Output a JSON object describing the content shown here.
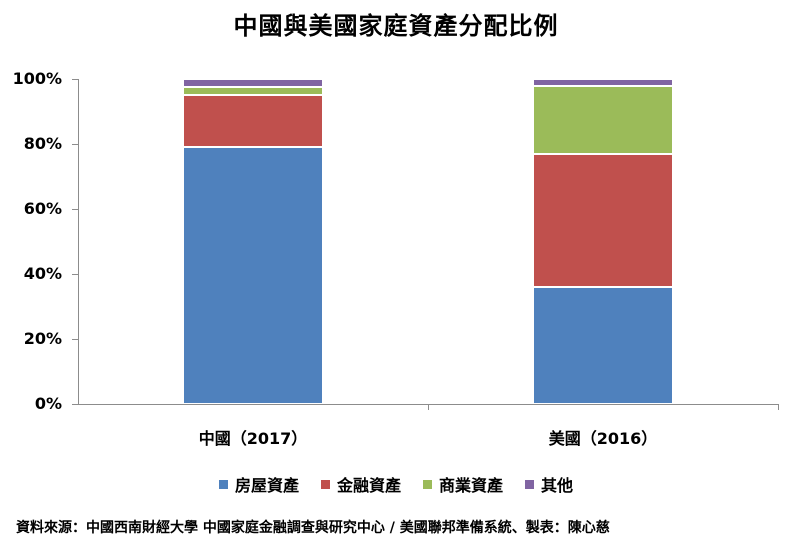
{
  "title": "中國與美國家庭資產分配比例",
  "chart_data": {
    "type": "bar",
    "stacked": true,
    "title": "中國與美國家庭資產分配比例",
    "categories": [
      "中國（2017）",
      "美國（2016）"
    ],
    "series": [
      {
        "name": "房屋資產",
        "color": "#4f81bd",
        "values": [
          79,
          36
        ]
      },
      {
        "name": "金融資產",
        "color": "#c0504d",
        "values": [
          16,
          41
        ]
      },
      {
        "name": "商業資產",
        "color": "#9bbb59",
        "values": [
          2.5,
          21
        ]
      },
      {
        "name": "其他",
        "color": "#8064a2",
        "values": [
          2.5,
          2
        ]
      }
    ],
    "xlabel": "",
    "ylabel": "",
    "ylim": [
      0,
      100
    ],
    "yticks": [
      "0%",
      "20%",
      "40%",
      "60%",
      "80%",
      "100%"
    ],
    "grid": false,
    "legend_position": "bottom"
  },
  "yaxis": {
    "ticks": [
      {
        "label": "100%",
        "value": 100
      },
      {
        "label": "80%",
        "value": 80
      },
      {
        "label": "60%",
        "value": 60
      },
      {
        "label": "40%",
        "value": 40
      },
      {
        "label": "20%",
        "value": 20
      },
      {
        "label": "0%",
        "value": 0
      }
    ]
  },
  "xaxis": {
    "labels": [
      "中國（2017）",
      "美國（2016）"
    ]
  },
  "legend": [
    {
      "label": "房屋資產",
      "color": "#4f81bd"
    },
    {
      "label": "金融資產",
      "color": "#c0504d"
    },
    {
      "label": "商業資產",
      "color": "#9bbb59"
    },
    {
      "label": "其他",
      "color": "#8064a2"
    }
  ],
  "source": "資料來源：中國西南財經大學 中國家庭金融調查與研究中心 / 美國聯邦準備系統、製表：陳心慈"
}
